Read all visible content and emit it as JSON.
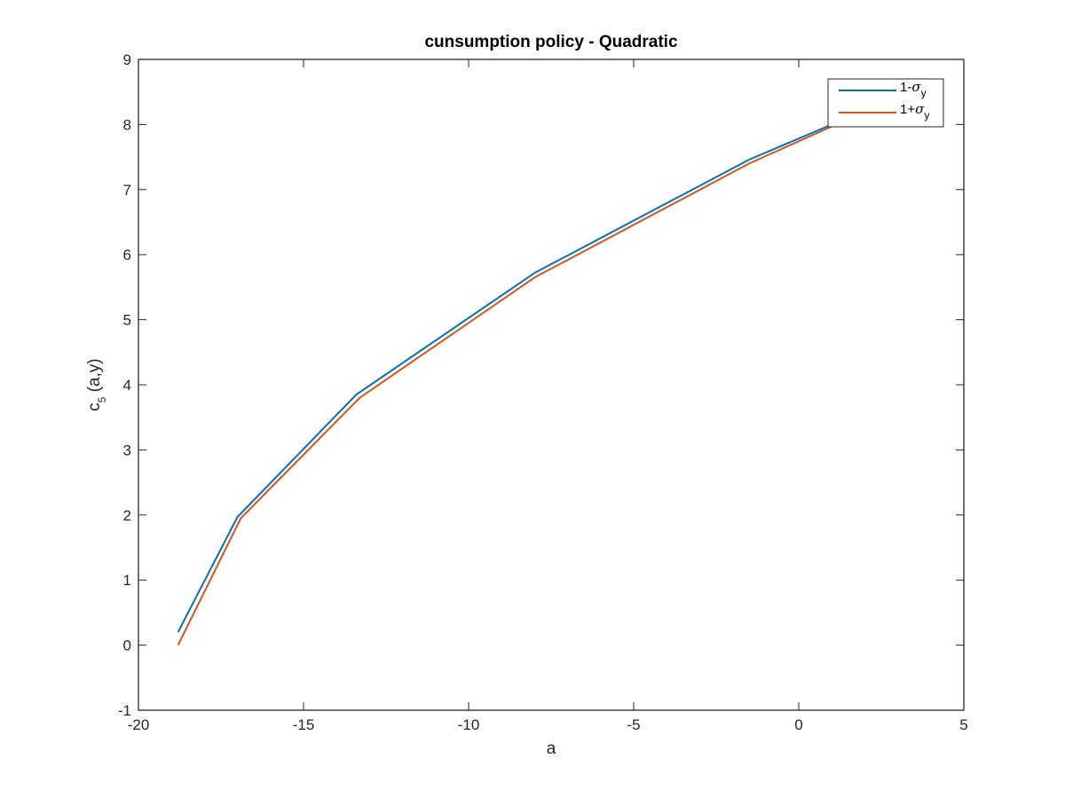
{
  "chart_data": {
    "type": "line",
    "title": "cunsumption policy - Quadratic",
    "xlabel": "a",
    "ylabel": {
      "main": "c",
      "sub": "5",
      "suffix": " (a,y)"
    },
    "xlim": [
      -20,
      5
    ],
    "ylim": [
      -1,
      9
    ],
    "xticks": [
      -20,
      -15,
      -10,
      -5,
      0,
      5
    ],
    "yticks": [
      -1,
      0,
      1,
      2,
      3,
      4,
      5,
      6,
      7,
      8,
      9
    ],
    "grid": false,
    "legend_position": "top-right",
    "series": [
      {
        "name": {
          "prefix": "1-",
          "greek": "σ",
          "sub": "y"
        },
        "color": "#0072BD",
        "x": [
          -18.8,
          -17.0,
          -13.4,
          -8.0,
          -1.5,
          1.0
        ],
        "y": [
          0.2,
          1.97,
          3.85,
          5.72,
          7.46,
          8.0
        ]
      },
      {
        "name": {
          "prefix": "1+",
          "greek": "σ",
          "sub": "y"
        },
        "color": "#D95319",
        "x": [
          -18.8,
          -16.9,
          -13.3,
          -8.0,
          -1.5,
          1.0
        ],
        "y": [
          0.0,
          1.95,
          3.8,
          5.65,
          7.4,
          7.97
        ]
      }
    ]
  }
}
